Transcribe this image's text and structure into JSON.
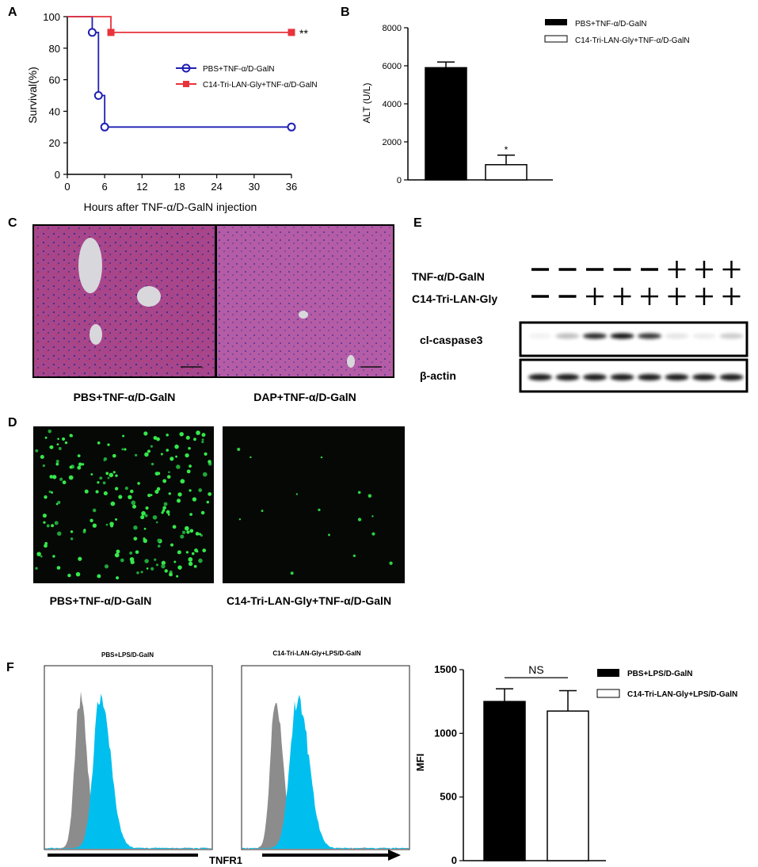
{
  "panel_labels": [
    "A",
    "B",
    "C",
    "D",
    "E",
    "F"
  ],
  "chart_data": [
    {
      "panel": "A",
      "type": "line",
      "xlabel": "Hours after TNF-α/D-GalN injection",
      "ylabel": "Survival(%)",
      "xlim": [
        0,
        36
      ],
      "ylim": [
        0,
        100
      ],
      "xticks": [
        "0",
        "6",
        "12",
        "18",
        "24",
        "30",
        "36"
      ],
      "yticks": [
        "0",
        "20",
        "40",
        "60",
        "80",
        "100"
      ],
      "legend_position": "right",
      "annotation": "**",
      "series": [
        {
          "name": "PBS+TNF-α/D-GalN",
          "color": "#1f1fb4",
          "marker": "circle",
          "x": [
            0,
            4,
            4,
            5,
            5,
            6,
            6,
            36
          ],
          "y": [
            100,
            100,
            90,
            90,
            50,
            50,
            30,
            30
          ],
          "marker_x": [
            4,
            5,
            6,
            36
          ],
          "marker_y": [
            90,
            50,
            30,
            30
          ]
        },
        {
          "name": "C14-Tri-LAN-Gly+TNF-α/D-GalN",
          "color": "#e8333b",
          "marker": "square",
          "x": [
            0,
            7,
            7,
            36
          ],
          "y": [
            100,
            100,
            90,
            90
          ],
          "marker_x": [
            7,
            36
          ],
          "marker_y": [
            90,
            90
          ]
        }
      ]
    },
    {
      "panel": "B",
      "type": "bar",
      "ylabel": "ALT (U/L)",
      "ylim": [
        0,
        8000
      ],
      "yticks": [
        "0",
        "2000",
        "4000",
        "6000",
        "8000"
      ],
      "legend_position": "top-right",
      "series": [
        {
          "name": "PBS+TNF-α/D-GalN",
          "value": 5900,
          "error": 300,
          "fill": "#000000"
        },
        {
          "name": "C14-Tri-LAN-Gly+TNF-α/D-GalN",
          "value": 800,
          "error": 500,
          "fill": "#ffffff",
          "annotation": "*"
        }
      ]
    },
    {
      "panel": "F",
      "type": "bar",
      "ylabel": "MFI",
      "ylim": [
        0,
        1500
      ],
      "yticks": [
        "0",
        "500",
        "1000",
        "1500"
      ],
      "legend_position": "top-right",
      "significance": "NS",
      "series": [
        {
          "name": "PBS+LPS/D-GalN",
          "value": 1250,
          "error": 100,
          "fill": "#000000"
        },
        {
          "name": "C14-Tri-LAN-Gly+LPS/D-GalN",
          "value": 1175,
          "error": 160,
          "fill": "#ffffff"
        }
      ]
    }
  ],
  "panel_c": {
    "left_caption": "PBS+TNF-α/D-GalN",
    "right_caption": "DAP+TNF-α/D-GalN"
  },
  "panel_d": {
    "left_caption": "PBS+TNF-α/D-GalN",
    "right_caption": "C14-Tri-LAN-Gly+TNF-α/D-GalN"
  },
  "panel_e": {
    "row1_label": "TNF-α/D-GalN",
    "row2_label": "C14-Tri-LAN-Gly",
    "row1_signs": [
      "−",
      "−",
      "−",
      "−",
      "−",
      "+",
      "+",
      "+"
    ],
    "row2_signs": [
      "−",
      "−",
      "+",
      "+",
      "+",
      "+",
      "+",
      "+"
    ],
    "band1_label": "cl-caspase3",
    "band2_label": "β-actin",
    "band1_intensity": [
      0.05,
      0.25,
      0.85,
      0.95,
      0.8,
      0.1,
      0.08,
      0.2
    ],
    "band2_intensity": [
      0.9,
      0.9,
      0.9,
      0.9,
      0.9,
      0.9,
      0.9,
      0.9
    ]
  },
  "panel_f_histograms": {
    "left_title": "PBS+LPS/D-GalN",
    "right_title": "C14-Tri-LAN-Gly+LPS/D-GalN",
    "axis_label": "TNFR1",
    "control_color": "#8c8c8c",
    "stain_color": "#00bfef"
  }
}
